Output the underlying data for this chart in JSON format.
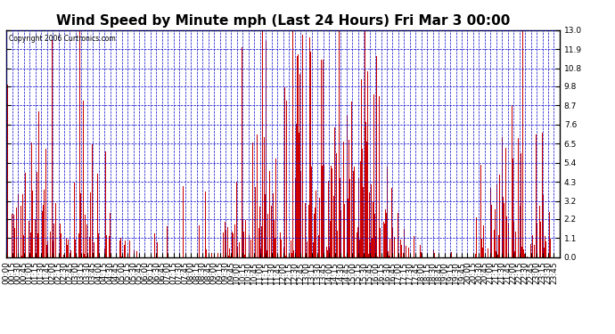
{
  "title": "Wind Speed by Minute mph (Last 24 Hours) Fri Mar 3 00:00",
  "copyright": "Copyright 2006 Curtronics.com",
  "yticks": [
    0.0,
    1.1,
    2.2,
    3.2,
    4.3,
    5.4,
    6.5,
    7.6,
    8.7,
    9.8,
    10.8,
    11.9,
    13.0
  ],
  "ylim": [
    0.0,
    13.0
  ],
  "bar_color": "#cc0000",
  "grid_color": "#0000cc",
  "background_color": "#ffffff",
  "title_fontsize": 11,
  "tick_fontsize": 6.5,
  "xtick_interval": 15,
  "total_minutes": 1440,
  "seed": 123
}
